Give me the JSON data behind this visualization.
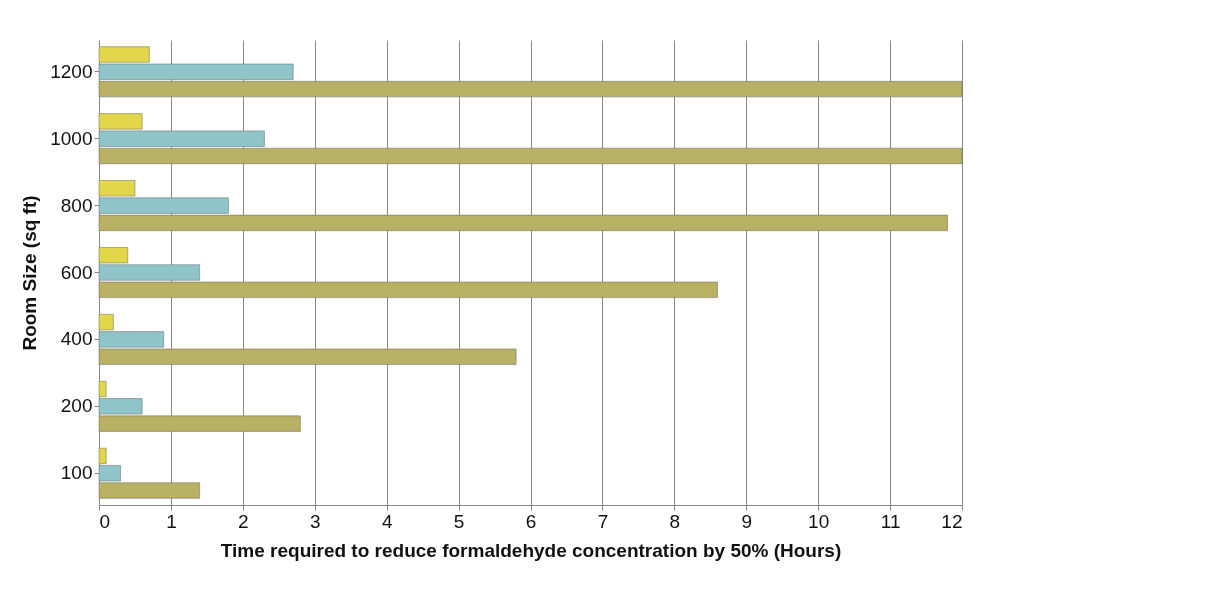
{
  "chart_data": {
    "type": "bar",
    "orientation": "horizontal",
    "xlabel": "Time  required to reduce formaldehyde concentration by 50% (Hours)",
    "ylabel": "Room Size (sq ft)",
    "categories": [
      "1200",
      "1000",
      "800",
      "600",
      "400",
      "200",
      "100"
    ],
    "series": [
      {
        "color": "#e3d64a",
        "values": [
          0.7,
          0.6,
          0.5,
          0.4,
          0.2,
          0.1,
          0.1
        ]
      },
      {
        "color": "#8fc4c9",
        "values": [
          2.7,
          2.3,
          1.8,
          1.4,
          0.9,
          0.6,
          0.3
        ]
      },
      {
        "color": "#b8b062",
        "values": [
          12,
          12,
          11.8,
          8.6,
          5.8,
          2.8,
          1.4
        ]
      }
    ],
    "xlim": [
      0,
      12
    ],
    "xticks": [
      0,
      1,
      2,
      3,
      4,
      5,
      6,
      7,
      8,
      9,
      10,
      11,
      12
    ],
    "grid": "x"
  }
}
